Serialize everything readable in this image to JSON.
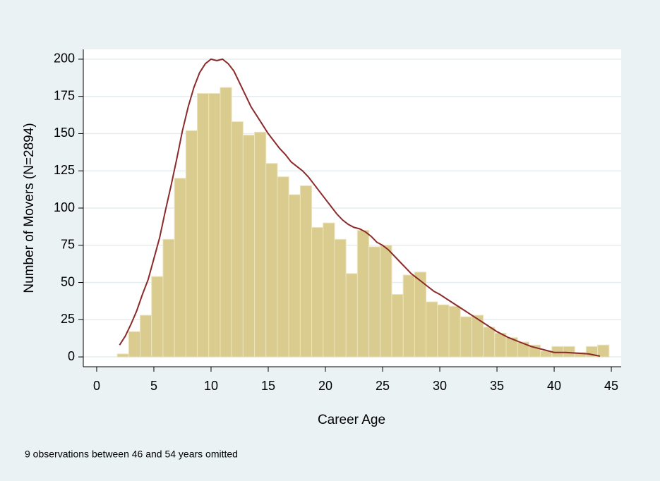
{
  "chart_data": {
    "type": "histogram",
    "x_label": "Career Age",
    "y_label": "Number of Movers (N=2894)",
    "note": "9 observations between 46 and 54 years omitted",
    "bins": [
      1.8,
      2.8,
      3.8,
      4.8,
      5.8,
      6.8,
      7.8,
      8.8,
      9.8,
      10.8,
      11.8,
      12.8,
      13.8,
      14.8,
      15.8,
      16.8,
      17.8,
      18.8,
      19.8,
      20.8,
      21.8,
      22.8,
      23.8,
      24.8,
      25.8,
      26.8,
      27.8,
      28.8,
      29.8,
      30.8,
      31.8,
      32.8,
      33.8,
      34.8,
      35.8,
      36.8,
      37.8,
      38.8,
      39.8,
      40.8,
      41.8,
      42.8,
      43.8,
      44.8
    ],
    "values": [
      2,
      17,
      28,
      54,
      79,
      120,
      152,
      177,
      177,
      181,
      158,
      149,
      151,
      130,
      121,
      109,
      115,
      87,
      90,
      79,
      56,
      85,
      74,
      75,
      42,
      55,
      57,
      37,
      35,
      34,
      27,
      28,
      20,
      16,
      13,
      10,
      8,
      4,
      7,
      7,
      3,
      7,
      8
    ],
    "color": "#d9cc8e",
    "edge_color": "#ece4bd",
    "line": {
      "color": "#8b2a2a",
      "x": [
        2,
        2.5,
        3,
        3.5,
        4,
        4.5,
        5,
        5.5,
        6,
        6.5,
        7,
        7.5,
        8,
        8.5,
        9,
        9.5,
        10,
        10.5,
        11,
        11.5,
        12,
        12.5,
        13,
        13.5,
        14,
        14.5,
        15,
        15.5,
        16,
        16.5,
        17,
        17.5,
        18,
        18.5,
        19,
        19.5,
        20,
        20.5,
        21,
        21.5,
        22,
        22.5,
        23,
        23.5,
        24,
        24.5,
        25,
        25.5,
        26,
        26.5,
        27,
        27.5,
        28,
        28.5,
        29,
        29.5,
        30,
        31,
        32,
        33,
        34,
        35,
        36,
        37,
        38,
        39,
        40,
        41,
        42,
        43,
        44
      ],
      "values": [
        8,
        14,
        22,
        31,
        42,
        52,
        66,
        80,
        98,
        115,
        133,
        152,
        168,
        181,
        191,
        197,
        200,
        199,
        200,
        197,
        192,
        184,
        176,
        168,
        162,
        156,
        150,
        145,
        140,
        136,
        131,
        128,
        125,
        121,
        116,
        111,
        106,
        101,
        96,
        92,
        89,
        87,
        86,
        84,
        81,
        77,
        75,
        72,
        68,
        64,
        60,
        56,
        53,
        50,
        47,
        44,
        42,
        37,
        32,
        27,
        22,
        17,
        13,
        10,
        7,
        5,
        3,
        3,
        2.5,
        2,
        0.5
      ]
    },
    "xlim": [
      -1.17,
      45.86
    ],
    "ylim": [
      -6.6,
      206.6
    ],
    "xticks": [
      0,
      5,
      10,
      15,
      20,
      25,
      30,
      35,
      40,
      45
    ],
    "yticks": [
      0,
      25,
      50,
      75,
      100,
      125,
      150,
      175,
      200
    ],
    "grid": true
  }
}
